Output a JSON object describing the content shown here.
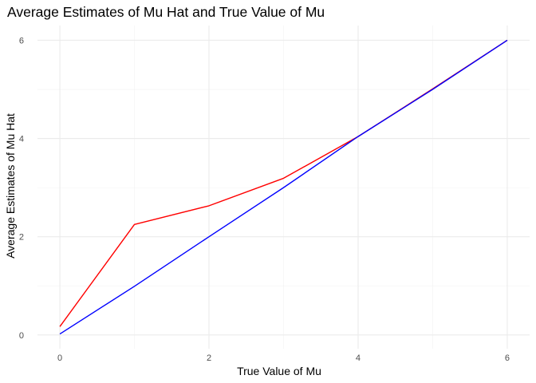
{
  "chart_data": {
    "type": "line",
    "title": "Average Estimates of Mu Hat and True Value of Mu",
    "xlabel": "True Value of Mu",
    "ylabel": "Average Estimates of Mu Hat",
    "xlim": [
      -0.3,
      6.3
    ],
    "ylim": [
      -0.28,
      6.3
    ],
    "x_ticks": [
      0,
      2,
      4,
      6
    ],
    "y_ticks": [
      0,
      2,
      4,
      6
    ],
    "x_minor": [
      1,
      3,
      5
    ],
    "y_minor": [
      1,
      3,
      5
    ],
    "grid": true,
    "legend": "none",
    "x": [
      0,
      1,
      2,
      3,
      4,
      5,
      6
    ],
    "series": [
      {
        "color": "#ff0000",
        "values": [
          0.17,
          2.25,
          2.63,
          3.19,
          4.04,
          5.01,
          6.0
        ]
      },
      {
        "color": "#0000ff",
        "values": [
          0.02,
          0.99,
          2.0,
          3.0,
          4.04,
          5.0,
          6.0
        ]
      }
    ]
  }
}
